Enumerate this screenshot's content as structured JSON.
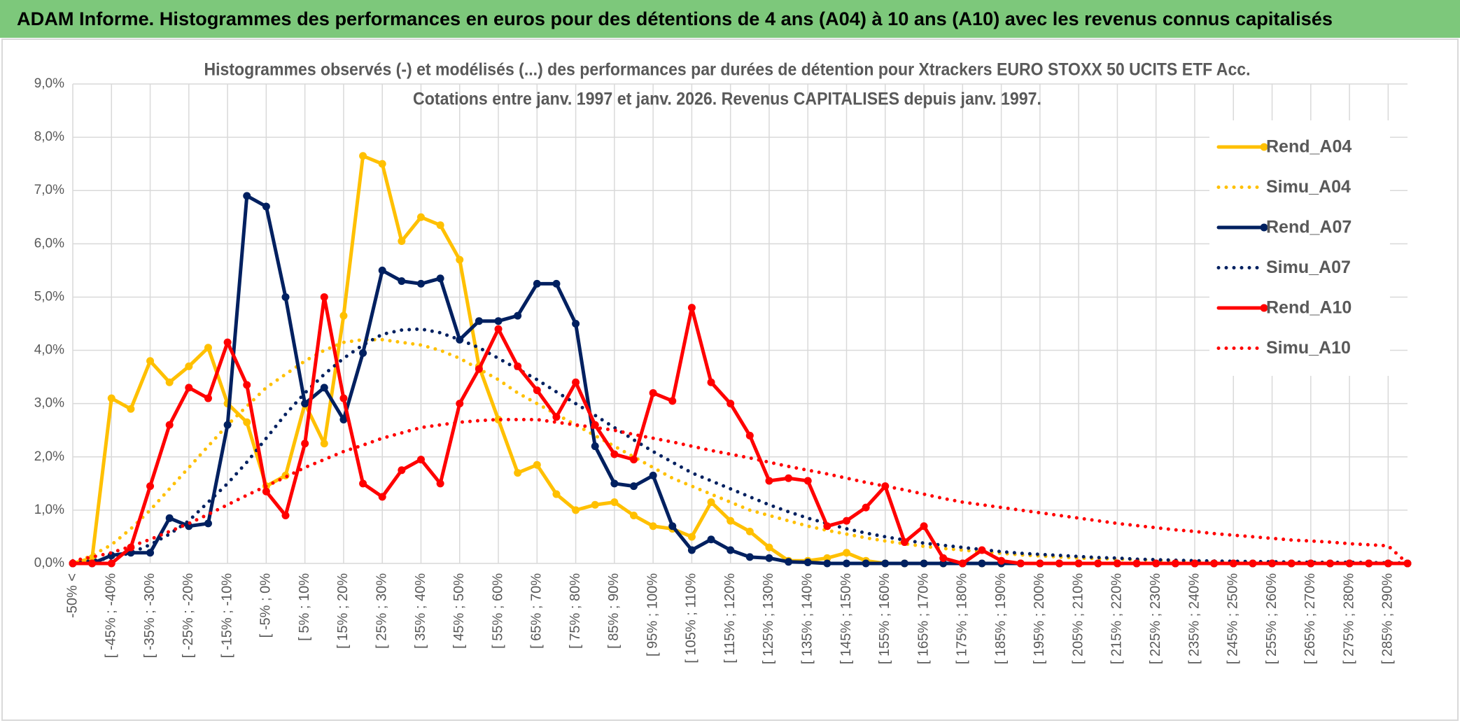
{
  "header": {
    "title": "ADAM Informe. Histogrammes des performances en euros pour des détentions de 4 ans (A04) à 10 ans (A10) avec les revenus connus capitalisés"
  },
  "chart_data": {
    "type": "line",
    "title": "Histogrammes observés (-) et modélisés (...) des performances par durées de détention pour Xtrackers EURO STOXX 50 UCITS ETF Acc.",
    "subtitle": "Cotations entre janv. 1997 et janv. 2026. Revenus CAPITALISES depuis janv. 1997.",
    "grid": true,
    "legend": "right",
    "ylim": [
      0,
      9
    ],
    "yticks": [
      {
        "value": 0,
        "label": "0,0%"
      },
      {
        "value": 1,
        "label": "1,0%"
      },
      {
        "value": 2,
        "label": "2,0%"
      },
      {
        "value": 3,
        "label": "3,0%"
      },
      {
        "value": 4,
        "label": "4,0%"
      },
      {
        "value": 5,
        "label": "5,0%"
      },
      {
        "value": 6,
        "label": "6,0%"
      },
      {
        "value": 7,
        "label": "7,0%"
      },
      {
        "value": 8,
        "label": "8,0%"
      },
      {
        "value": 9,
        "label": "9,0%"
      }
    ],
    "categories": [
      "-50% <",
      null,
      "[ -45% ; -40%",
      null,
      "[ -35% ; -30%",
      null,
      "[ -25% ; -20%",
      null,
      "[ -15% ; -10%",
      null,
      "[ -5% ; 0%",
      null,
      "[ 5% ; 10%",
      null,
      "[ 15% ; 20%",
      null,
      "[ 25% ; 30%",
      null,
      "[ 35% ; 40%",
      null,
      "[ 45% ; 50%",
      null,
      "[ 55% ; 60%",
      null,
      "[ 65% ; 70%",
      null,
      "[ 75% ; 80%",
      null,
      "[ 85% ; 90%",
      null,
      "[ 95% ; 100%",
      null,
      "[ 105% ; 110%",
      null,
      "[ 115% ; 120%",
      null,
      "[ 125% ; 130%",
      null,
      "[ 135% ; 140%",
      null,
      "[ 145% ; 150%",
      null,
      "[ 155% ; 160%",
      null,
      "[ 165% ; 170%",
      null,
      "[ 175% ; 180%",
      null,
      "[ 185% ; 190%",
      null,
      "[ 195% ; 200%",
      null,
      "[ 205% ; 210%",
      null,
      "[ 215% ; 220%",
      null,
      "[ 225% ; 230%",
      null,
      "[ 235% ; 240%",
      null,
      "[ 245% ; 250%",
      null,
      "[ 255% ; 260%",
      null,
      "[ 265% ; 270%",
      null,
      "[ 275% ; 280%",
      null,
      "[ 285% ; 290%",
      null
    ],
    "series": [
      {
        "name": "Rend_A04",
        "color": "#ffc000",
        "line_style": "solid",
        "markers": true,
        "values": [
          0,
          0.1,
          3.1,
          2.9,
          3.8,
          3.4,
          3.7,
          4.05,
          3.0,
          2.65,
          1.45,
          1.65,
          3.0,
          2.25,
          4.65,
          7.65,
          7.5,
          6.05,
          6.5,
          6.35,
          5.7,
          3.7,
          2.7,
          1.7,
          1.85,
          1.3,
          1.0,
          1.1,
          1.15,
          0.9,
          0.7,
          0.65,
          0.5,
          1.15,
          0.8,
          0.6,
          0.3,
          0.05,
          0.05,
          0.1,
          0.2,
          0.05,
          0,
          0,
          0,
          0,
          0,
          0,
          0,
          0,
          0,
          0,
          0,
          0,
          0,
          0,
          0,
          0,
          0,
          0,
          0,
          0,
          0,
          0,
          0,
          0,
          0,
          0,
          0,
          0
        ]
      },
      {
        "name": "Simu_A04",
        "color": "#ffc000",
        "line_style": "dotted",
        "markers": false,
        "values": [
          0,
          0.15,
          0.35,
          0.65,
          1.0,
          1.4,
          1.8,
          2.2,
          2.6,
          2.95,
          3.3,
          3.55,
          3.8,
          4.0,
          4.15,
          4.2,
          4.2,
          4.15,
          4.1,
          4.0,
          3.85,
          3.65,
          3.45,
          3.2,
          3.0,
          2.8,
          2.6,
          2.4,
          2.2,
          2.0,
          1.8,
          1.6,
          1.45,
          1.3,
          1.15,
          1.0,
          0.9,
          0.8,
          0.7,
          0.62,
          0.55,
          0.48,
          0.42,
          0.37,
          0.32,
          0.28,
          0.25,
          0.22,
          0.19,
          0.16,
          0.14,
          0.12,
          0.1,
          0.09,
          0.08,
          0.07,
          0.06,
          0.05,
          0.04,
          0.035,
          0.03,
          0.025,
          0.02,
          0.02,
          0.02,
          0.015,
          0.01,
          0.01,
          0.01,
          0
        ]
      },
      {
        "name": "Rend_A07",
        "color": "#002060",
        "line_style": "solid",
        "markers": true,
        "values": [
          0,
          0,
          0.15,
          0.2,
          0.2,
          0.85,
          0.7,
          0.75,
          2.6,
          6.9,
          6.7,
          5.0,
          3.0,
          3.3,
          2.7,
          3.95,
          5.5,
          5.3,
          5.25,
          5.35,
          4.2,
          4.55,
          4.55,
          4.65,
          5.25,
          5.25,
          4.5,
          2.2,
          1.5,
          1.45,
          1.65,
          0.7,
          0.25,
          0.45,
          0.25,
          0.12,
          0.1,
          0.03,
          0.02,
          0,
          0,
          0,
          0,
          0,
          0,
          0,
          0,
          0,
          0,
          0,
          0,
          0,
          0,
          0,
          0,
          0,
          0,
          0,
          0,
          0,
          0,
          0,
          0,
          0,
          0,
          0,
          0,
          0,
          0,
          0
        ]
      },
      {
        "name": "Simu_A07",
        "color": "#002060",
        "line_style": "dotted",
        "markers": false,
        "values": [
          0,
          0.05,
          0.1,
          0.2,
          0.35,
          0.55,
          0.8,
          1.15,
          1.5,
          1.9,
          2.35,
          2.8,
          3.2,
          3.55,
          3.85,
          4.1,
          4.3,
          4.38,
          4.4,
          4.33,
          4.2,
          4.05,
          3.85,
          3.65,
          3.45,
          3.22,
          3.0,
          2.78,
          2.55,
          2.32,
          2.1,
          1.9,
          1.7,
          1.55,
          1.4,
          1.25,
          1.1,
          0.97,
          0.85,
          0.75,
          0.65,
          0.57,
          0.5,
          0.44,
          0.38,
          0.34,
          0.3,
          0.26,
          0.22,
          0.19,
          0.17,
          0.15,
          0.13,
          0.11,
          0.1,
          0.08,
          0.07,
          0.06,
          0.05,
          0.045,
          0.04,
          0.035,
          0.03,
          0.025,
          0.02,
          0.02,
          0.02,
          0.015,
          0.01,
          0.01
        ]
      },
      {
        "name": "Rend_A10",
        "color": "#ff0000",
        "line_style": "solid",
        "markers": true,
        "values": [
          0,
          0,
          0,
          0.3,
          1.45,
          2.6,
          3.3,
          3.1,
          4.15,
          3.35,
          1.35,
          0.9,
          2.25,
          5.0,
          3.1,
          1.5,
          1.25,
          1.75,
          1.95,
          1.5,
          3.0,
          3.65,
          4.4,
          3.7,
          3.25,
          2.75,
          3.4,
          2.6,
          2.05,
          1.95,
          3.2,
          3.05,
          4.8,
          3.4,
          3.0,
          2.4,
          1.55,
          1.6,
          1.55,
          0.7,
          0.8,
          1.05,
          1.45,
          0.4,
          0.7,
          0.1,
          0,
          0.25,
          0.05,
          0,
          0,
          0,
          0,
          0,
          0,
          0,
          0,
          0,
          0,
          0,
          0,
          0,
          0,
          0,
          0,
          0,
          0,
          0,
          0,
          0
        ]
      },
      {
        "name": "Simu_A10",
        "color": "#ff0000",
        "line_style": "dotted",
        "markers": false,
        "values": [
          0.05,
          0.12,
          0.2,
          0.32,
          0.45,
          0.6,
          0.75,
          0.92,
          1.1,
          1.28,
          1.45,
          1.62,
          1.8,
          1.95,
          2.1,
          2.22,
          2.35,
          2.45,
          2.55,
          2.6,
          2.65,
          2.68,
          2.7,
          2.7,
          2.7,
          2.65,
          2.6,
          2.55,
          2.5,
          2.42,
          2.35,
          2.28,
          2.2,
          2.12,
          2.05,
          1.98,
          1.9,
          1.82,
          1.75,
          1.68,
          1.6,
          1.52,
          1.45,
          1.38,
          1.3,
          1.22,
          1.15,
          1.1,
          1.05,
          1.0,
          0.95,
          0.9,
          0.85,
          0.8,
          0.75,
          0.71,
          0.67,
          0.63,
          0.6,
          0.56,
          0.53,
          0.5,
          0.47,
          0.44,
          0.42,
          0.4,
          0.37,
          0.35,
          0.33,
          0
        ]
      }
    ]
  }
}
